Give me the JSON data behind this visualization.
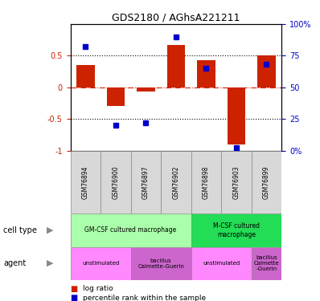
{
  "title": "GDS2180 / AGhsA221211",
  "samples": [
    "GSM76894",
    "GSM76900",
    "GSM76897",
    "GSM76902",
    "GSM76898",
    "GSM76903",
    "GSM76899"
  ],
  "log_ratios": [
    0.35,
    -0.3,
    -0.07,
    0.67,
    0.43,
    -0.9,
    0.5
  ],
  "percentile_ranks": [
    82,
    20,
    22,
    90,
    65,
    2,
    68
  ],
  "bar_color": "#CC2200",
  "dot_color": "#0000CC",
  "ylim": [
    -1.0,
    1.0
  ],
  "yticks": [
    -1,
    -0.5,
    0,
    0.5
  ],
  "y2ticks": [
    0,
    25,
    50,
    75,
    100
  ],
  "ytick_labels": [
    "-1",
    "-0.5",
    "0",
    "0.5"
  ],
  "y2tick_labels": [
    "0%",
    "25",
    "50",
    "75",
    "100%"
  ],
  "cell_types": [
    {
      "label": "GM-CSF cultured macrophage",
      "span": [
        0,
        4
      ],
      "color": "#AAFFAA"
    },
    {
      "label": "M-CSF cultured\nmacrophage",
      "span": [
        4,
        7
      ],
      "color": "#22DD55"
    }
  ],
  "agents": [
    {
      "label": "unstimulated",
      "span": [
        0,
        2
      ],
      "color": "#FF88FF"
    },
    {
      "label": "bacillus\nCalmette-Guerin",
      "span": [
        2,
        4
      ],
      "color": "#CC66CC"
    },
    {
      "label": "unstimulated",
      "span": [
        4,
        6
      ],
      "color": "#FF88FF"
    },
    {
      "label": "bacillus\nCalmette\n-Guerin",
      "span": [
        6,
        7
      ],
      "color": "#CC66CC"
    }
  ],
  "row_label_cell_type": "cell type",
  "row_label_agent": "agent",
  "legend_items": [
    {
      "label": "log ratio",
      "color": "#CC2200"
    },
    {
      "label": "percentile rank within the sample",
      "color": "#0000CC"
    }
  ],
  "sample_bg": "#D8D8D8"
}
